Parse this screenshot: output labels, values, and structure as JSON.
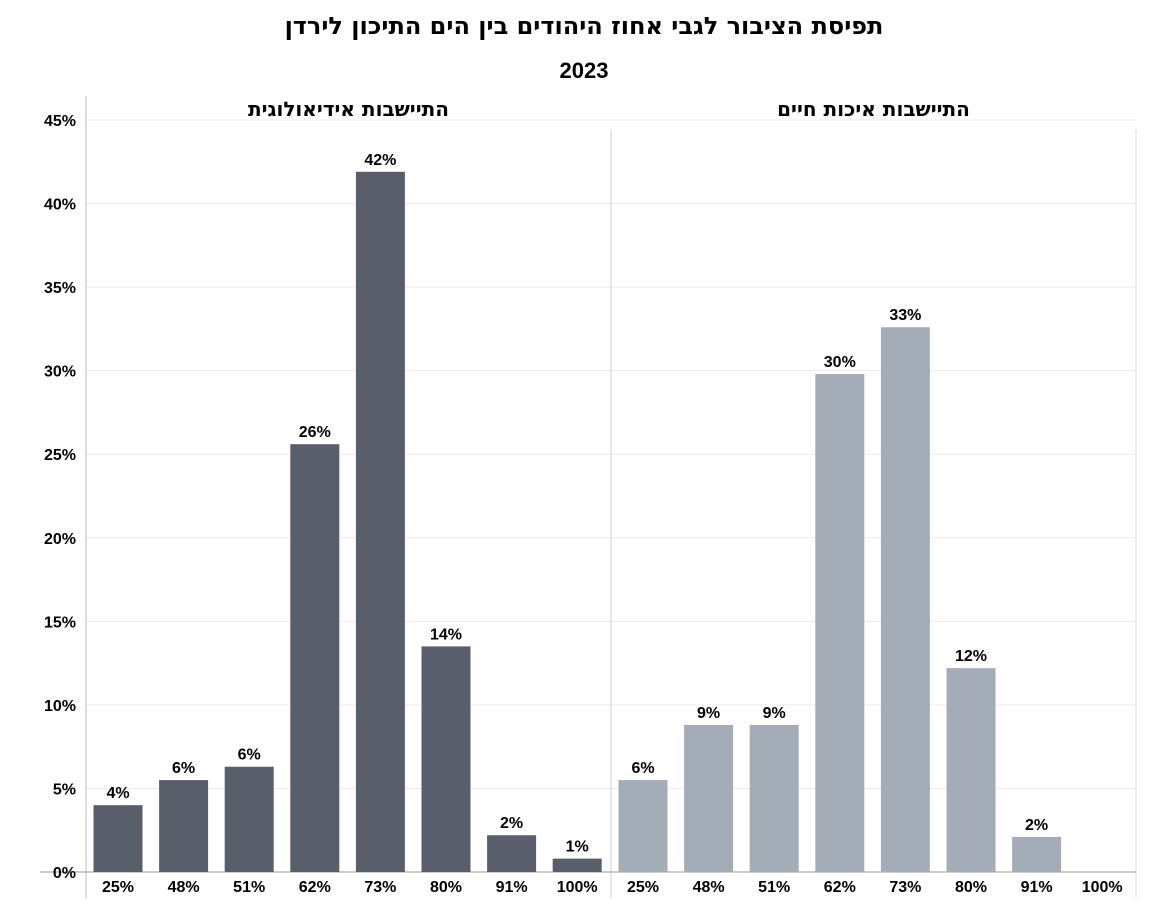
{
  "title": "תפיסת הציבור לגבי אחוז היהודים בין הים התיכון לירדן",
  "subtitle": "2023",
  "chart_data": {
    "type": "bar",
    "categories": [
      "25%",
      "48%",
      "51%",
      "62%",
      "73%",
      "80%",
      "91%",
      "100%"
    ],
    "y_ticks": [
      "0%",
      "5%",
      "10%",
      "15%",
      "20%",
      "25%",
      "30%",
      "35%",
      "40%",
      "45%"
    ],
    "ylim": [
      0,
      45
    ],
    "grid": true,
    "panels": [
      {
        "name": "התיישבות אידיאולוגית",
        "color": "#585f6b",
        "values": [
          4,
          5.5,
          6.3,
          25.6,
          41.9,
          13.5,
          2.2,
          0.8
        ],
        "labels": [
          "4%",
          "6%",
          "6%",
          "26%",
          "42%",
          "14%",
          "2%",
          "1%"
        ]
      },
      {
        "name": "התיישבות איכות חיים",
        "color": "#a4acb7",
        "values": [
          5.5,
          8.8,
          8.8,
          29.8,
          32.6,
          12.2,
          2.1,
          0
        ],
        "labels": [
          "6%",
          "9%",
          "9%",
          "30%",
          "33%",
          "12%",
          "2%",
          ""
        ]
      }
    ]
  }
}
